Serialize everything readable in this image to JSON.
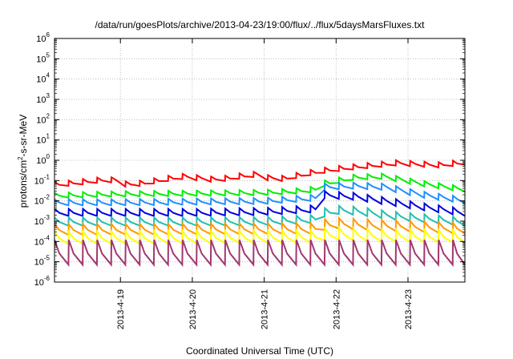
{
  "chart_data": {
    "type": "line",
    "title": "/data/run/goesPlots/archive/2013-04-23/19:00/flux/../flux/5daysMarsFluxes.txt",
    "xlabel": "Coordinated Universal Time (UTC)",
    "ylabel": "protons/cm2-s-sr-MeV",
    "ylabel_base": "protons/cm",
    "ylabel_sup": "2",
    "ylabel_rest": "-s-sr-MeV",
    "yscale": "log",
    "xlim": [
      "2013-04-18T02:00",
      "2013-04-23T19:00"
    ],
    "ylim": [
      1e-06,
      1000000.0
    ],
    "grid": true,
    "x_ticks": [
      {
        "label": "2013-4-19",
        "date": "2013-04-19T00:00"
      },
      {
        "label": "2013-4-20",
        "date": "2013-04-20T00:00"
      },
      {
        "label": "2013-4-21",
        "date": "2013-04-21T00:00"
      },
      {
        "label": "2013-4-22",
        "date": "2013-04-22T00:00"
      },
      {
        "label": "2013-4-23",
        "date": "2013-04-23T00:00"
      }
    ],
    "y_ticks": [
      {
        "exp": -6,
        "base": "10",
        "sup": "-6"
      },
      {
        "exp": -5,
        "base": "10",
        "sup": "-5"
      },
      {
        "exp": -4,
        "base": "10",
        "sup": "-4"
      },
      {
        "exp": -3,
        "base": "10",
        "sup": "-3"
      },
      {
        "exp": -2,
        "base": "10",
        "sup": "-2"
      },
      {
        "exp": -1,
        "base": "10",
        "sup": "-1"
      },
      {
        "exp": 0,
        "base": "10",
        "sup": "0"
      },
      {
        "exp": 1,
        "base": "10",
        "sup": "1"
      },
      {
        "exp": 2,
        "base": "10",
        "sup": "2"
      },
      {
        "exp": 3,
        "base": "10",
        "sup": "3"
      },
      {
        "exp": 4,
        "base": "10",
        "sup": "4"
      },
      {
        "exp": 5,
        "base": "10",
        "sup": "5"
      },
      {
        "exp": 6,
        "base": "10",
        "sup": "6"
      }
    ],
    "sawtooth_period_hours": 4.75,
    "series": [
      {
        "color": "#ff0000",
        "dip_ratio": 0.55,
        "trend": [
          [
            "2013-04-18T02:00",
            0.085
          ],
          [
            "2013-04-18T20:00",
            0.16
          ],
          [
            "2013-04-19T03:00",
            0.08
          ],
          [
            "2013-04-19T20:00",
            0.22
          ],
          [
            "2013-04-20T08:00",
            0.15
          ],
          [
            "2013-04-20T20:00",
            0.28
          ],
          [
            "2013-04-21T04:00",
            0.15
          ],
          [
            "2013-04-21T18:00",
            0.4
          ],
          [
            "2013-04-22T04:00",
            0.6
          ],
          [
            "2013-04-22T20:00",
            1.0
          ],
          [
            "2013-04-23T10:00",
            0.8
          ],
          [
            "2013-04-23T19:00",
            1.1
          ]
        ]
      },
      {
        "color": "#00ee00",
        "dip_ratio": 0.55,
        "trend": [
          [
            "2013-04-18T02:00",
            0.025
          ],
          [
            "2013-04-19T00:00",
            0.03
          ],
          [
            "2013-04-20T00:00",
            0.032
          ],
          [
            "2013-04-21T00:00",
            0.035
          ],
          [
            "2013-04-21T15:00",
            0.045
          ],
          [
            "2013-04-21T20:00",
            0.1
          ],
          [
            "2013-04-22T06:00",
            0.2
          ],
          [
            "2013-04-22T16:00",
            0.22
          ],
          [
            "2013-04-23T04:00",
            0.1
          ],
          [
            "2013-04-23T19:00",
            0.05
          ]
        ]
      },
      {
        "color": "#1e90ff",
        "dip_ratio": 0.5,
        "trend": [
          [
            "2013-04-18T02:00",
            0.012
          ],
          [
            "2013-04-19T00:00",
            0.012
          ],
          [
            "2013-04-20T00:00",
            0.013
          ],
          [
            "2013-04-21T00:00",
            0.014
          ],
          [
            "2013-04-21T16:00",
            0.02
          ],
          [
            "2013-04-21T20:00",
            0.07
          ],
          [
            "2013-04-22T06:00",
            0.08
          ],
          [
            "2013-04-22T16:00",
            0.07
          ],
          [
            "2013-04-23T04:00",
            0.03
          ],
          [
            "2013-04-23T19:00",
            0.015
          ]
        ]
      },
      {
        "color": "#0000dd",
        "dip_ratio": 0.45,
        "trend": [
          [
            "2013-04-18T02:00",
            0.004
          ],
          [
            "2013-04-19T00:00",
            0.004
          ],
          [
            "2013-04-20T00:00",
            0.004
          ],
          [
            "2013-04-21T00:00",
            0.0045
          ],
          [
            "2013-04-21T16:00",
            0.006
          ],
          [
            "2013-04-21T20:00",
            0.03
          ],
          [
            "2013-04-22T06:00",
            0.025
          ],
          [
            "2013-04-22T16:00",
            0.015
          ],
          [
            "2013-04-23T04:00",
            0.008
          ],
          [
            "2013-04-23T19:00",
            0.004
          ]
        ]
      },
      {
        "color": "#20c0b0",
        "dip_ratio": 0.4,
        "trend": [
          [
            "2013-04-18T02:00",
            0.0015
          ],
          [
            "2013-04-20T00:00",
            0.0015
          ],
          [
            "2013-04-21T00:00",
            0.0016
          ],
          [
            "2013-04-21T16:00",
            0.002
          ],
          [
            "2013-04-21T22:00",
            0.006
          ],
          [
            "2013-04-22T08:00",
            0.005
          ],
          [
            "2013-04-22T18:00",
            0.003
          ],
          [
            "2013-04-23T19:00",
            0.0015
          ]
        ]
      },
      {
        "color": "#ff9900",
        "dip_ratio": 0.3,
        "trend": [
          [
            "2013-04-18T02:00",
            0.0007
          ],
          [
            "2013-04-21T16:00",
            0.0008
          ],
          [
            "2013-04-21T22:00",
            0.0015
          ],
          [
            "2013-04-22T12:00",
            0.0012
          ],
          [
            "2013-04-23T19:00",
            0.0008
          ]
        ]
      },
      {
        "color": "#ffff00",
        "dip_ratio": 0.25,
        "trend": [
          [
            "2013-04-18T02:00",
            0.0003
          ],
          [
            "2013-04-21T16:00",
            0.00035
          ],
          [
            "2013-04-21T22:00",
            0.0005
          ],
          [
            "2013-04-22T12:00",
            0.0004
          ],
          [
            "2013-04-23T19:00",
            0.00035
          ]
        ]
      },
      {
        "color": "#a03870",
        "dip_ratio": 0.06,
        "trend": [
          [
            "2013-04-18T02:00",
            0.00012
          ],
          [
            "2013-04-23T19:00",
            0.00012
          ]
        ]
      }
    ]
  }
}
